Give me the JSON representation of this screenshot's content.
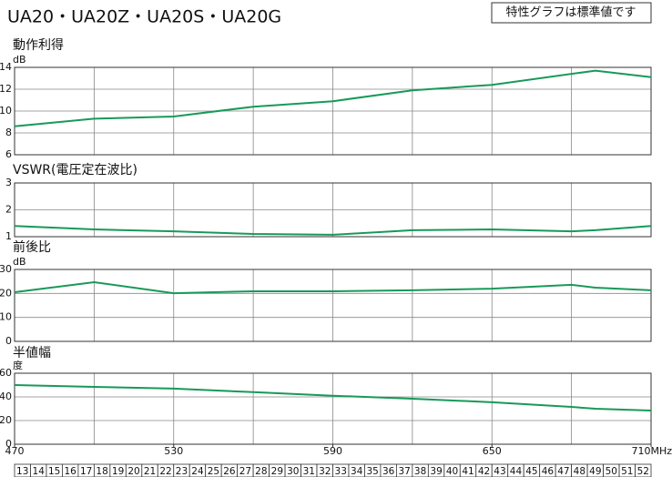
{
  "header": {
    "title": "UA20・UA20Z・UA20S・UA20G",
    "note": "特性グラフは標準値です"
  },
  "chart_data": [
    {
      "type": "line",
      "title": "動作利得",
      "y_unit": "dB",
      "color": "#18995a",
      "x": [
        470,
        500,
        530,
        560,
        590,
        620,
        650,
        689,
        710
      ],
      "values": [
        8.6,
        9.3,
        9.5,
        10.4,
        10.9,
        11.9,
        12.4,
        13.7,
        13.1
      ],
      "xlim": [
        470,
        710
      ],
      "ylim": [
        6,
        14
      ],
      "yticks": [
        6,
        8,
        10,
        12,
        14
      ],
      "xgrid": [
        500,
        530,
        560,
        590,
        620,
        650,
        680
      ]
    },
    {
      "type": "line",
      "title": "VSWR(電圧定在波比)",
      "color": "#18995a",
      "x": [
        470,
        500,
        530,
        560,
        590,
        620,
        650,
        680,
        689,
        710
      ],
      "values": [
        1.4,
        1.27,
        1.2,
        1.1,
        1.07,
        1.24,
        1.27,
        1.2,
        1.24,
        1.4
      ],
      "xlim": [
        470,
        710
      ],
      "ylim": [
        1,
        3
      ],
      "yticks": [
        1,
        2,
        3
      ],
      "xgrid": [
        500,
        530,
        560,
        590,
        620,
        650,
        680
      ]
    },
    {
      "type": "line",
      "title": "前後比",
      "y_unit": "dB",
      "color": "#18995a",
      "x": [
        470,
        500,
        530,
        560,
        590,
        620,
        650,
        680,
        689,
        710
      ],
      "values": [
        20.5,
        24.7,
        20.1,
        20.9,
        20.9,
        21.3,
        22,
        23.6,
        22.4,
        21.3
      ],
      "xlim": [
        470,
        710
      ],
      "ylim": [
        0,
        30
      ],
      "yticks": [
        0,
        10,
        20,
        30
      ],
      "xgrid": [
        500,
        530,
        560,
        590,
        620,
        650,
        680
      ]
    },
    {
      "type": "line",
      "title": "半値幅",
      "y_unit": "度",
      "color": "#18995a",
      "x": [
        470,
        500,
        530,
        560,
        590,
        620,
        650,
        680,
        689,
        710
      ],
      "values": [
        50,
        48.5,
        47,
        44,
        41,
        38.5,
        35.5,
        31.5,
        30,
        28.5
      ],
      "xlim": [
        470,
        710
      ],
      "ylim": [
        0,
        60
      ],
      "yticks": [
        0,
        20,
        40,
        60
      ],
      "xgrid": [
        500,
        530,
        560,
        590,
        620,
        650,
        680
      ],
      "xticks": [
        470,
        530,
        590,
        650,
        {
          "value": 710,
          "label": "710MHz"
        }
      ]
    }
  ],
  "channels": [
    "13",
    "14",
    "15",
    "16",
    "17",
    "18",
    "19",
    "20",
    "21",
    "22",
    "23",
    "24",
    "25",
    "26",
    "27",
    "28",
    "29",
    "30",
    "31",
    "32",
    "33",
    "34",
    "35",
    "36",
    "37",
    "38",
    "39",
    "40",
    "41",
    "42",
    "43",
    "44",
    "45",
    "46",
    "47",
    "48",
    "49",
    "50",
    "51",
    "52"
  ]
}
